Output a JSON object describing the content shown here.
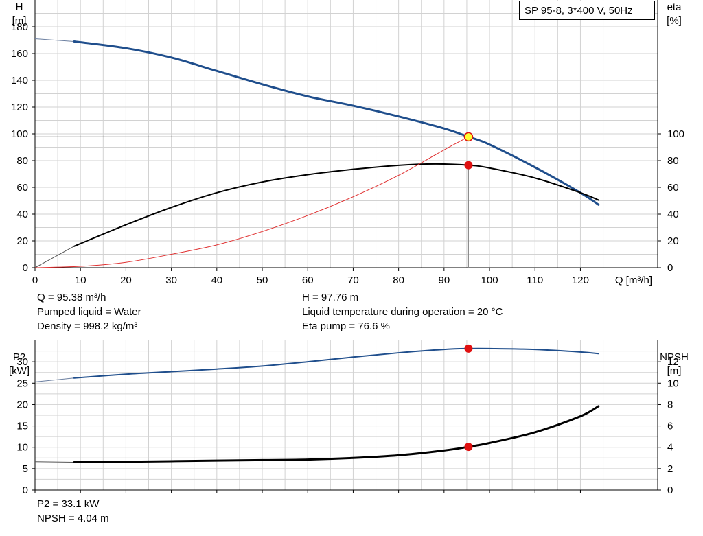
{
  "chart_data": [
    {
      "type": "line",
      "title": "SP 95-8, 3*400 V, 50Hz",
      "xlabel": "Q [m³/h]",
      "ylabel": [
        "H",
        "[m]"
      ],
      "y2label": [
        "eta",
        "[%]"
      ],
      "xlim": [
        0,
        137
      ],
      "ylim": [
        0,
        200
      ],
      "y2lim": [
        0,
        200
      ],
      "xticks": [
        0,
        10,
        20,
        30,
        40,
        50,
        60,
        70,
        80,
        90,
        100,
        110,
        120
      ],
      "yticks": [
        0,
        20,
        40,
        60,
        80,
        100,
        120,
        140,
        160,
        180
      ],
      "y2ticks": [
        0,
        20,
        40,
        60,
        80,
        100
      ],
      "grid": true,
      "series": [
        {
          "axis": "left",
          "color": "#1f4e8c",
          "x": [
            0,
            8.6,
            20,
            30,
            40,
            50,
            60,
            70,
            80,
            90,
            95.38,
            100,
            110,
            120,
            124
          ],
          "y": [
            171,
            169,
            164,
            157,
            147,
            137,
            128,
            121,
            113,
            104,
            97.76,
            92,
            75,
            56,
            47
          ]
        },
        {
          "axis": "right",
          "color": "#000000",
          "x": [
            0,
            8.6,
            20,
            30,
            40,
            50,
            60,
            70,
            80,
            88,
            95.38,
            100,
            110,
            120,
            124
          ],
          "y": [
            0,
            16,
            32,
            45,
            56,
            64,
            69.5,
            73.5,
            76.5,
            77.5,
            76.6,
            74.5,
            67,
            56,
            50.5
          ]
        },
        {
          "axis": "left",
          "color": "#e03030",
          "x": [
            0,
            10,
            20,
            30,
            40,
            50,
            60,
            70,
            80,
            90,
            95.38
          ],
          "y": [
            0,
            1,
            4,
            10,
            17,
            27,
            39,
            53,
            69,
            88,
            97.76
          ]
        }
      ],
      "operating_point": {
        "q": 95.38,
        "h": 97.76,
        "eta": 76.6
      }
    },
    {
      "type": "line",
      "ylabel": [
        "P2",
        "[kW]"
      ],
      "y2label": [
        "NPSH",
        "[m]"
      ],
      "xlim": [
        0,
        137
      ],
      "ylim": [
        0,
        35
      ],
      "y2lim": [
        0,
        14
      ],
      "yticks": [
        0,
        5,
        10,
        15,
        20,
        25,
        30
      ],
      "y2ticks": [
        0,
        2,
        4,
        6,
        8,
        10,
        12
      ],
      "grid": true,
      "series": [
        {
          "axis": "left",
          "color": "#1f4e8c",
          "x": [
            0,
            8.6,
            20,
            30,
            40,
            50,
            60,
            70,
            80,
            90,
            95.38,
            100,
            110,
            120,
            124
          ],
          "y": [
            25.3,
            26.2,
            27.1,
            27.7,
            28.3,
            29.0,
            30.0,
            31.1,
            32.1,
            32.9,
            33.1,
            33.1,
            32.9,
            32.3,
            31.9
          ]
        },
        {
          "axis": "right",
          "color": "#000000",
          "x": [
            0,
            8.6,
            20,
            30,
            40,
            50,
            60,
            70,
            80,
            90,
            95.38,
            100,
            110,
            120,
            124
          ],
          "y": [
            2.65,
            2.6,
            2.65,
            2.7,
            2.75,
            2.8,
            2.85,
            3.0,
            3.25,
            3.7,
            4.04,
            4.4,
            5.4,
            6.9,
            7.85
          ]
        }
      ],
      "operating_point": {
        "q": 95.38,
        "p2": 33.1,
        "npsh": 4.04
      }
    }
  ],
  "info_top": {
    "q": "Q = 95.38 m³/h",
    "liquid": "Pumped liquid = Water",
    "density": "Density = 998.2 kg/m³",
    "h": "H = 97.76 m",
    "temp": "Liquid temperature during operation = 20 °C",
    "eta": "Eta pump = 76.6 %"
  },
  "info_bottom": {
    "p2": "P2 = 33.1 kW",
    "npsh": "NPSH = 4.04 m"
  }
}
